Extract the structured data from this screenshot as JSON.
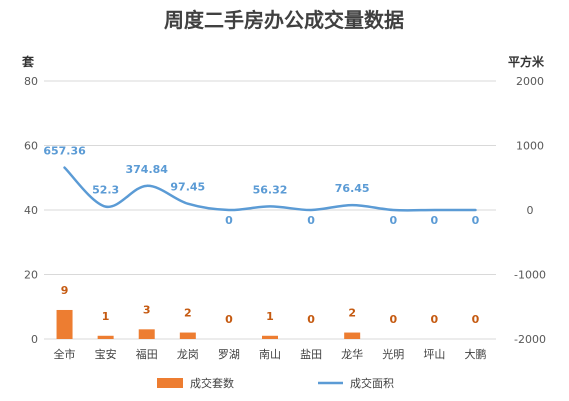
{
  "chart_data": {
    "type": "bar+line",
    "title": "周度二手房办公成交量数据",
    "left_axis": {
      "unit": "套",
      "ylim": [
        0,
        80
      ],
      "ticks": [
        0,
        20,
        40,
        60,
        80
      ]
    },
    "right_axis": {
      "unit": "平方米",
      "ylim": [
        -2000,
        2000
      ],
      "ticks": [
        -2000,
        -1000,
        0,
        1000,
        2000
      ]
    },
    "grid": true,
    "legend_position": "bottom",
    "categories": [
      "全市",
      "宝安",
      "福田",
      "龙岗",
      "罗湖",
      "南山",
      "盐田",
      "龙华",
      "光明",
      "坪山",
      "大鹏"
    ],
    "series": [
      {
        "name": "成交套数",
        "type": "bar",
        "axis": "left",
        "color": "#ed7d31",
        "values": [
          9,
          1,
          3,
          2,
          0,
          1,
          0,
          2,
          0,
          0,
          0
        ],
        "labels": [
          "9",
          "1",
          "3",
          "2",
          "0",
          "1",
          "0",
          "2",
          "0",
          "0",
          "0"
        ]
      },
      {
        "name": "成交面积",
        "type": "line",
        "axis": "right",
        "smooth": true,
        "color": "#5b9bd5",
        "values": [
          657.36,
          52.3,
          374.84,
          97.45,
          0,
          56.32,
          0,
          76.45,
          0,
          0,
          0
        ],
        "labels": [
          "657.36",
          "52.3",
          "374.84",
          "97.45",
          "0",
          "56.32",
          "0",
          "76.45",
          "0",
          "0",
          "0"
        ]
      }
    ]
  }
}
